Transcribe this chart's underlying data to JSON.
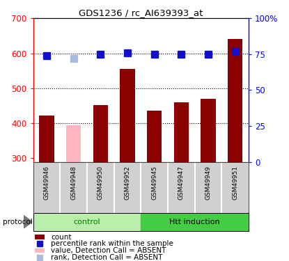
{
  "title": "GDS1236 / rc_AI639393_at",
  "samples": [
    "GSM49946",
    "GSM49948",
    "GSM49950",
    "GSM49952",
    "GSM49945",
    "GSM49947",
    "GSM49949",
    "GSM49951"
  ],
  "count_values": [
    422,
    395,
    452,
    555,
    437,
    460,
    470,
    640
  ],
  "rank_values": [
    74,
    72,
    75,
    76,
    75,
    75,
    75,
    77
  ],
  "absent_flags": [
    false,
    true,
    false,
    false,
    false,
    false,
    false,
    false
  ],
  "bar_color_normal": "#8B0000",
  "bar_color_absent": "#FFB6C1",
  "rank_color_normal": "#1010CC",
  "rank_color_absent": "#AABBDD",
  "ylim_left": [
    290,
    700
  ],
  "ylim_right": [
    0,
    100
  ],
  "yticks_left": [
    300,
    400,
    500,
    600,
    700
  ],
  "yticks_right": [
    0,
    25,
    50,
    75,
    100
  ],
  "ytick_labels_right": [
    "0",
    "25",
    "50",
    "75",
    "100%"
  ],
  "control_label": "control",
  "htt_label": "Htt induction",
  "protocol_label": "protocol",
  "legend_items": [
    {
      "label": "count",
      "color": "#8B0000",
      "square": false
    },
    {
      "label": "percentile rank within the sample",
      "color": "#1010CC",
      "square": true
    },
    {
      "label": "value, Detection Call = ABSENT",
      "color": "#FFB6C1",
      "square": false
    },
    {
      "label": "rank, Detection Call = ABSENT",
      "color": "#AABBDD",
      "square": true
    }
  ],
  "bar_width": 0.55,
  "rank_marker_size": 7,
  "grid_yticks": [
    400,
    500,
    600
  ],
  "background_plot": "white",
  "background_samples": "#D0D0D0",
  "background_control": "#BBEEAA",
  "background_htt": "#44CC44",
  "ybase": 290,
  "n_control": 4
}
